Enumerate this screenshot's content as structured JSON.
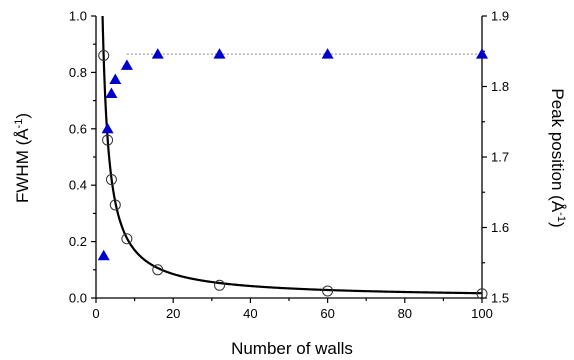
{
  "chart_data": {
    "type": "scatter",
    "title": "",
    "xlabel": "Number of walls",
    "ylabel_left": "FWHM (Å",
    "ylabel_left_sup": "-1",
    "ylabel_left_close": ")",
    "ylabel_right": "Peak position (Å",
    "ylabel_right_sup": "-1",
    "ylabel_right_close": ")",
    "xlim": [
      0,
      100
    ],
    "ylim_left": [
      0.0,
      1.0
    ],
    "ylim_right": [
      1.5,
      1.9
    ],
    "x_ticks": [
      "0",
      "20",
      "40",
      "60",
      "80",
      "100"
    ],
    "y_left_ticks": [
      "0.0",
      "0.2",
      "0.4",
      "0.6",
      "0.8",
      "1.0"
    ],
    "y_right_ticks": [
      "1.5",
      "1.6",
      "1.7",
      "1.8",
      "1.9"
    ],
    "grid": false,
    "colors": {
      "triangle": "#0000cc",
      "circle": "#333333",
      "fit": "#000000",
      "reference": "#888888"
    },
    "series": [
      {
        "marker": "open-circle",
        "axis": "left",
        "x": [
          2,
          3,
          4,
          5,
          8,
          16,
          32,
          60,
          100
        ],
        "y": [
          0.86,
          0.56,
          0.42,
          0.33,
          0.21,
          0.1,
          0.045,
          0.025,
          0.015
        ]
      },
      {
        "marker": "filled-triangle",
        "axis": "right",
        "x": [
          2,
          3,
          4,
          5,
          8,
          16,
          32,
          60,
          100
        ],
        "y": [
          1.56,
          1.74,
          1.79,
          1.81,
          1.83,
          1.846,
          1.846,
          1.846,
          1.846
        ]
      }
    ],
    "fit_curve": {
      "axis": "left",
      "form": "a/x",
      "a": 1.7,
      "x_start": 1.7,
      "x_end": 100
    },
    "reference_line": {
      "axis": "right",
      "y": 1.846,
      "x_start": 8,
      "x_end": 100,
      "style": "dotted"
    }
  }
}
